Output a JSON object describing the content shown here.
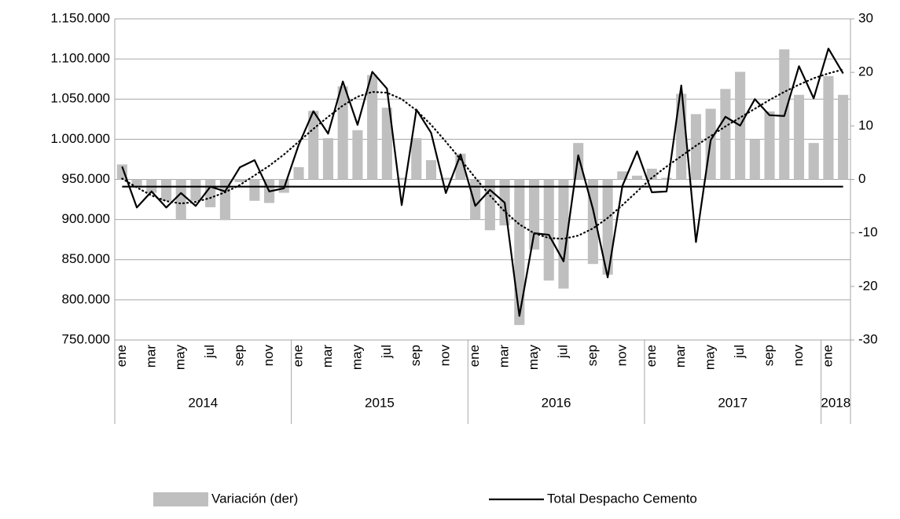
{
  "chart_data": {
    "type": "bar",
    "categories": [
      "ene",
      null,
      "mar",
      null,
      "may",
      null,
      "jul",
      null,
      "sep",
      null,
      "nov",
      null,
      "ene",
      null,
      "mar",
      null,
      "may",
      null,
      "jul",
      null,
      "sep",
      null,
      "nov",
      null,
      "ene",
      null,
      "mar",
      null,
      "may",
      null,
      "jul",
      null,
      "sep",
      null,
      "nov",
      null,
      "ene",
      null,
      "mar",
      null,
      "may",
      null,
      "jul",
      null,
      "sep",
      null,
      "nov",
      null,
      "ene",
      null
    ],
    "years": [
      "2014",
      "2015",
      "2016",
      "2017",
      "2018"
    ],
    "series": [
      {
        "name": "Variación (der)",
        "type": "bar",
        "axis": "y2",
        "color": "#bfbfbf",
        "values": [
          2.8,
          -1.5,
          -2.5,
          -4,
          -7.5,
          -4,
          -5.2,
          -7.6,
          -0.5,
          -4,
          -4.4,
          -2.5,
          2.3,
          12.8,
          7.7,
          17.4,
          9.2,
          19.5,
          13.4,
          0.3,
          7.7,
          3.6,
          0.3,
          4.8,
          -7.5,
          -9.5,
          -8.6,
          -27.2,
          -13.1,
          -18.9,
          -20.4,
          6.8,
          -15.8,
          -17.8,
          1.5,
          0.7,
          2,
          0.3,
          16,
          12.2,
          13.2,
          16.9,
          20.1,
          7.4,
          12.7,
          24.3,
          15.8,
          6.8,
          19.3,
          15.8
        ]
      },
      {
        "name": "Total Despacho Cemento",
        "type": "line",
        "color": "#000000",
        "values": [
          966000,
          915000,
          935000,
          915000,
          933000,
          917000,
          941000,
          935000,
          965000,
          974000,
          935000,
          939000,
          993000,
          1035000,
          1007000,
          1072000,
          1018000,
          1084000,
          1063000,
          918000,
          1037000,
          1008000,
          933000,
          981000,
          917000,
          937000,
          921000,
          780000,
          883000,
          881000,
          848000,
          980000,
          913000,
          828000,
          942000,
          985000,
          934000,
          935000,
          1067000,
          872000,
          999000,
          1028000,
          1017000,
          1050000,
          1030000,
          1029000,
          1091000,
          1051000,
          1113000,
          1082000
        ]
      },
      {
        "type": "line",
        "style": "dotted",
        "color": "#000000",
        "values": [
          951000,
          940000,
          930000,
          923000,
          920000,
          922000,
          927000,
          934000,
          943000,
          955000,
          967000,
          981000,
          997000,
          1013000,
          1028000,
          1042000,
          1053000,
          1059000,
          1058000,
          1050000,
          1036000,
          1018000,
          997000,
          975000,
          952000,
          930000,
          910000,
          894000,
          883000,
          877000,
          876000,
          880000,
          889000,
          902000,
          918000,
          935000,
          952000,
          966000,
          979000,
          992000,
          1004000,
          1016000,
          1027000,
          1038000,
          1049000,
          1059000,
          1068000,
          1076000,
          1082000,
          1087000
        ]
      },
      {
        "type": "line",
        "color": "#000000",
        "values": [
          941000,
          941000,
          941000,
          941000,
          941000,
          941000,
          941000,
          941000,
          941000,
          941000,
          941000,
          941000,
          941000,
          941000,
          941000,
          941000,
          941000,
          941000,
          941000,
          941000,
          941000,
          941000,
          941000,
          941000,
          941000,
          941000,
          941000,
          941000,
          941000,
          941000,
          941000,
          941000,
          941000,
          941000,
          941000,
          941000,
          941000,
          941000,
          941000,
          941000,
          941000,
          941000,
          941000,
          941000,
          941000,
          941000,
          941000,
          941000,
          941000,
          941000
        ]
      }
    ],
    "ylim": [
      750000,
      1150000
    ],
    "yticks": [
      {
        "value": 750000,
        "label": "750.000"
      },
      {
        "value": 800000,
        "label": "800.000"
      },
      {
        "value": 850000,
        "label": "850.000"
      },
      {
        "value": 900000,
        "label": "900.000"
      },
      {
        "value": 950000,
        "label": "950.000"
      },
      {
        "value": 1000000,
        "label": "1.000.000"
      },
      {
        "value": 1050000,
        "label": "1.050.000"
      },
      {
        "value": 1100000,
        "label": "1.100.000"
      },
      {
        "value": 1150000,
        "label": "1.150.000"
      }
    ],
    "y2lim": [
      -30,
      30
    ],
    "y2ticks": [
      -30,
      -20,
      -10,
      0,
      10,
      20,
      30
    ],
    "grid": true,
    "legend": "bottom"
  }
}
